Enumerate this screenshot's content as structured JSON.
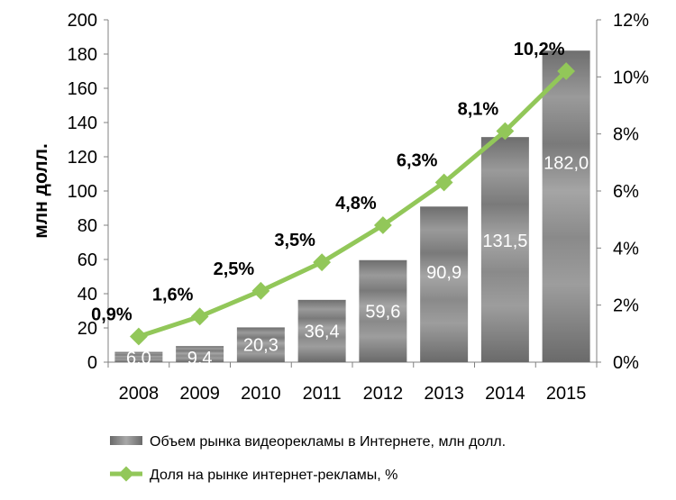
{
  "chart_data": {
    "type": "bar",
    "categories": [
      "2008",
      "2009",
      "2010",
      "2011",
      "2012",
      "2013",
      "2014",
      "2015"
    ],
    "series": [
      {
        "name": "Объем рынка видеорекламы в Интернете, млн долл.",
        "type": "bar",
        "axis": "left",
        "values": [
          6.0,
          9.4,
          20.3,
          36.4,
          59.6,
          90.9,
          131.5,
          182.0
        ],
        "labels": [
          "6,0",
          "9,4",
          "20,3",
          "36,4",
          "59,6",
          "90,9",
          "131,5",
          "182,0"
        ]
      },
      {
        "name": "Доля на рынке интернет-рекламы, %",
        "type": "line",
        "axis": "right",
        "values": [
          0.9,
          1.6,
          2.5,
          3.5,
          4.8,
          6.3,
          8.1,
          10.2
        ],
        "labels": [
          "0,9%",
          "1,6%",
          "2,5%",
          "3,5%",
          "4,8%",
          "6,3%",
          "8,1%",
          "10,2%"
        ]
      }
    ],
    "ylabel": "млн долл.",
    "ylim": [
      0,
      200
    ],
    "yticks": [
      "0",
      "20",
      "40",
      "60",
      "80",
      "100",
      "120",
      "140",
      "160",
      "180",
      "200"
    ],
    "y2lim": [
      0,
      12
    ],
    "y2ticks": [
      "0%",
      "2%",
      "4%",
      "6%",
      "8%",
      "10%",
      "12%"
    ],
    "legend_position": "bottom",
    "grid": false,
    "colors": {
      "bar": "#8c8c8c",
      "line": "#92c759"
    }
  }
}
